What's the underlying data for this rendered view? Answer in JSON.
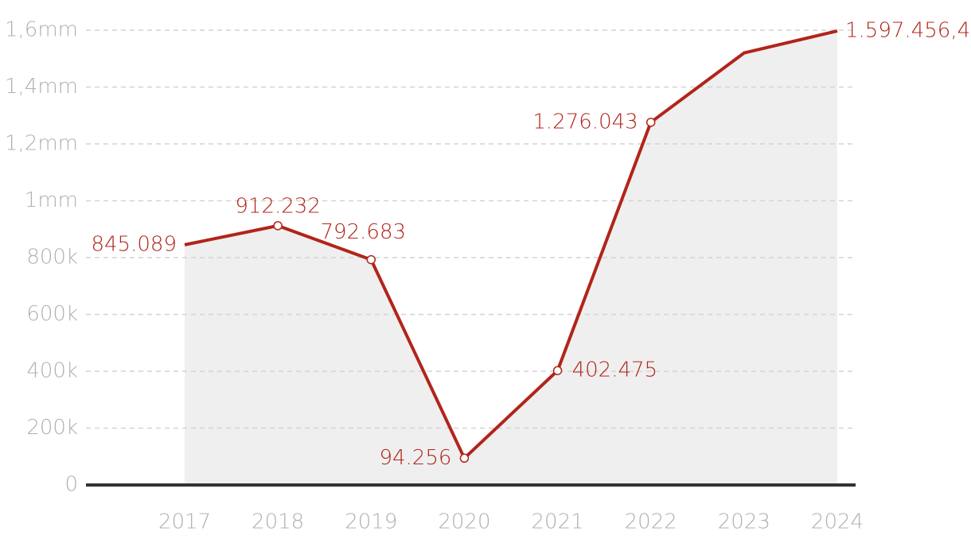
{
  "chart_data": {
    "type": "line",
    "categories": [
      "2017",
      "2018",
      "2019",
      "2020",
      "2021",
      "2022",
      "2023",
      "2024"
    ],
    "values": [
      845089,
      912232,
      792683,
      94256,
      402475,
      1276043,
      1520000,
      1597456.4
    ],
    "value_labels": [
      "845.089",
      "912.232",
      "792.683",
      "94.256",
      "402.475",
      "1.276.043",
      null,
      "1.597.456,4"
    ],
    "color": "#b2241a",
    "area_color": "#efefef",
    "ylim": [
      0,
      1600000
    ],
    "yticks": [
      0,
      {
        "value": 200000,
        "label": "200k"
      },
      {
        "value": 400000,
        "label": "400k"
      },
      {
        "value": 600000,
        "label": "600k"
      },
      {
        "value": 800000,
        "label": "800k"
      },
      {
        "value": 1000000,
        "label": "1mm"
      },
      {
        "value": 1200000,
        "label": "1,2mm"
      },
      {
        "value": 1400000,
        "label": "1,4mm"
      },
      {
        "value": 1600000,
        "label": "1,6mm"
      }
    ],
    "grid": true
  }
}
